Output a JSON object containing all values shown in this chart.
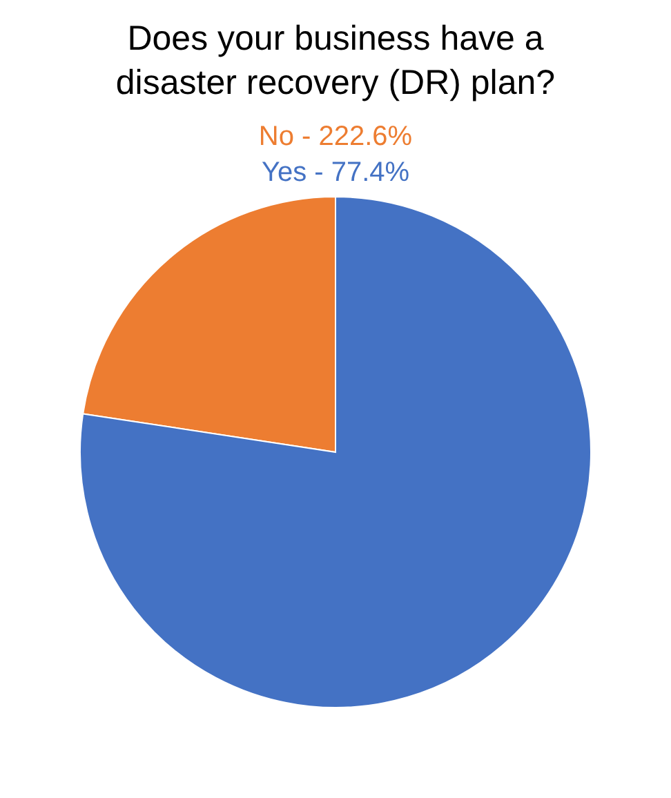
{
  "chart_data": {
    "type": "pie",
    "title": "Does your business have a disaster recovery (DR) plan?",
    "categories": [
      "No - 222.6%",
      "Yes - 77.4%"
    ],
    "values": [
      22.6,
      77.4
    ],
    "colors": [
      "#ed7d31",
      "#4472c4"
    ]
  }
}
